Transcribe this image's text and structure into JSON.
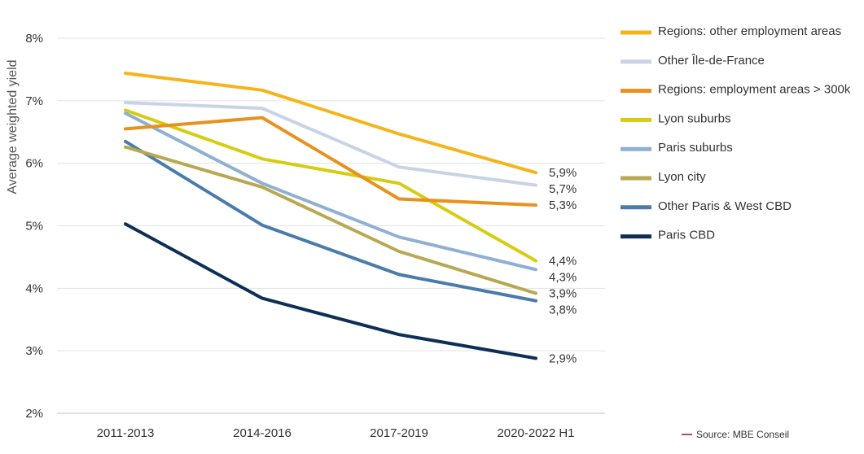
{
  "chart_data": {
    "type": "line",
    "ylabel": "Average weighted yield",
    "categories": [
      "2011-2013",
      "2014-2016",
      "2017-2019",
      "2020-2022 H1"
    ],
    "ylim": [
      2,
      8
    ],
    "yticks": [
      "2%",
      "3%",
      "4%",
      "5%",
      "6%",
      "7%",
      "8%"
    ],
    "grid": true,
    "legend_position": "right",
    "series": [
      {
        "name": "Regions: other employment areas",
        "color": "#F5B41A",
        "values": [
          7.44,
          7.17,
          6.47,
          5.85
        ],
        "end_label": "5,9%"
      },
      {
        "name": "Other Île-de-France",
        "color": "#C8D4E6",
        "values": [
          6.97,
          6.88,
          5.94,
          5.65
        ],
        "end_label": "5,7%"
      },
      {
        "name": "Regions: employment areas > 300k",
        "color": "#E8911E",
        "values": [
          6.55,
          6.73,
          5.43,
          5.33
        ],
        "end_label": "5,3%"
      },
      {
        "name": "Lyon suburbs",
        "color": "#D6CC12",
        "values": [
          6.85,
          6.07,
          5.68,
          4.44
        ],
        "end_label": "4,4%"
      },
      {
        "name": "Paris suburbs",
        "color": "#8FB0D2",
        "values": [
          6.8,
          5.68,
          4.82,
          4.3
        ],
        "end_label": "4,3%"
      },
      {
        "name": "Lyon city",
        "color": "#B8A852",
        "values": [
          6.26,
          5.62,
          4.59,
          3.92
        ],
        "end_label": "3,9%"
      },
      {
        "name": "Other Paris & West CBD",
        "color": "#4A7BAA",
        "values": [
          6.35,
          5.01,
          4.22,
          3.8
        ],
        "end_label": "3,8%"
      },
      {
        "name": "Paris CBD",
        "color": "#0E2F55",
        "values": [
          5.03,
          3.84,
          3.26,
          2.88
        ],
        "end_label": "2,9%"
      }
    ]
  },
  "source": {
    "text": "Source: MBE Conseil",
    "color": "#8B1A2B"
  },
  "colors": {
    "grid": "#E3E3E3",
    "axis": "#BFBFBF",
    "text": "#333333"
  }
}
